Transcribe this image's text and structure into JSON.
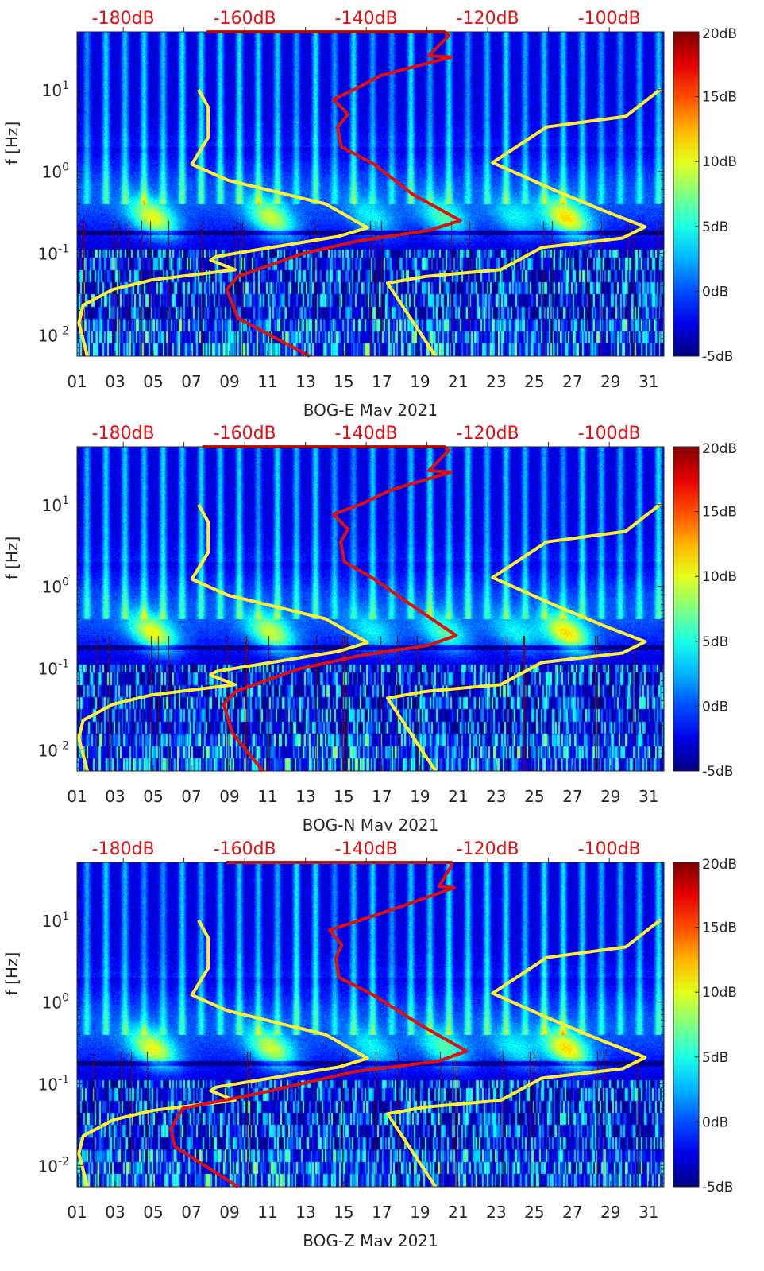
{
  "chart_data": [
    {
      "type": "heatmap",
      "xlabel": "BOG-E May 2021",
      "ylabel": "f [Hz]",
      "xlim": [
        1,
        31.8
      ],
      "ylim": [
        0.0055,
        51
      ],
      "yscale": "log",
      "x_ticks": {
        "values": [
          1,
          3,
          5,
          7,
          9,
          11,
          13,
          15,
          17,
          19,
          21,
          23,
          25,
          27,
          29,
          31
        ],
        "labels": [
          "01",
          "03",
          "05",
          "07",
          "09",
          "11",
          "13",
          "15",
          "17",
          "19",
          "21",
          "23",
          "25",
          "27",
          "29",
          "31"
        ]
      },
      "y_ticks": [
        {
          "value": 10,
          "base": "10",
          "exp": "1"
        },
        {
          "value": 1,
          "base": "10",
          "exp": "0"
        },
        {
          "value": 0.1,
          "base": "10",
          "exp": "-1"
        },
        {
          "value": 0.01,
          "base": "10",
          "exp": "-2"
        }
      ],
      "top_axis": {
        "xlim": [
          -187.6,
          -91
        ],
        "ticks": [
          {
            "value": -180,
            "label": "-180dB"
          },
          {
            "value": -160,
            "label": "-160dB"
          },
          {
            "value": -140,
            "label": "-140dB"
          },
          {
            "value": -120,
            "label": "-120dB"
          },
          {
            "value": -100,
            "label": "-100dB"
          }
        ]
      },
      "colorbar": {
        "range": [
          -5,
          20
        ],
        "colormap": "jet",
        "ticks": [
          {
            "value": 20,
            "label": "20dB"
          },
          {
            "value": 15,
            "label": "15dB"
          },
          {
            "value": 10,
            "label": "10dB"
          },
          {
            "value": 5,
            "label": "5dB"
          },
          {
            "value": 0,
            "label": "0dB"
          },
          {
            "value": -5,
            "label": "-5dB"
          }
        ]
      },
      "seed": 1,
      "curves": [
        {
          "color": "#ffee33",
          "points_db_hz": [
            [
              -167.6,
              10
            ],
            [
              -166.0,
              6.1
            ],
            [
              -166.0,
              2.6
            ],
            [
              -168.7,
              1.22
            ],
            [
              -162.8,
              0.78
            ],
            [
              -146.7,
              0.4
            ],
            [
              -139.8,
              0.205
            ],
            [
              -144.6,
              0.16
            ],
            [
              -164.7,
              0.091
            ],
            [
              -165.6,
              0.082
            ],
            [
              -161.6,
              0.0625
            ],
            [
              -175.3,
              0.047
            ],
            [
              -181.7,
              0.036
            ],
            [
              -186.6,
              0.023
            ],
            [
              -187.3,
              0.014
            ],
            [
              -185.9,
              0.0055
            ]
          ]
        },
        {
          "color": "#ffee33",
          "points_db_hz": [
            [
              -91.5,
              10.2
            ],
            [
              -97.3,
              4.7
            ],
            [
              -110.3,
              3.5
            ],
            [
              -119.2,
              1.28
            ],
            [
              -108.8,
              0.58
            ],
            [
              -100.9,
              0.33
            ],
            [
              -94.1,
              0.21
            ],
            [
              -97.8,
              0.153
            ],
            [
              -111.1,
              0.117
            ],
            [
              -117.9,
              0.0625
            ],
            [
              -120.8,
              0.06
            ],
            [
              -130.1,
              0.052
            ],
            [
              -136.5,
              0.043
            ],
            [
              -128.6,
              0.0055
            ]
          ]
        },
        {
          "color": "#e01010",
          "points_db_hz": [
            [
              -166.3,
              51
            ],
            [
              -127.1,
              51
            ],
            [
              -126.4,
              46
            ],
            [
              -129.7,
              26
            ],
            [
              -126,
              25
            ],
            [
              -137.5,
              15
            ],
            [
              -142,
              10
            ],
            [
              -145.4,
              7.6
            ],
            [
              -143,
              5
            ],
            [
              -144.7,
              3.5
            ],
            [
              -144.1,
              2.0
            ],
            [
              -138.8,
              1.24
            ],
            [
              -132.3,
              0.52
            ],
            [
              -124.5,
              0.25
            ],
            [
              -129.7,
              0.19
            ],
            [
              -141.5,
              0.14
            ],
            [
              -150.6,
              0.098
            ],
            [
              -161.1,
              0.052
            ],
            [
              -163.0,
              0.036
            ],
            [
              -161.1,
              0.016
            ],
            [
              -149.3,
              0.0055
            ]
          ]
        }
      ]
    },
    {
      "type": "heatmap",
      "xlabel": "BOG-N May 2021",
      "ylabel": "f [Hz]",
      "xlim": [
        1,
        31.8
      ],
      "ylim": [
        0.0055,
        51
      ],
      "yscale": "log",
      "x_ticks": {
        "values": [
          1,
          3,
          5,
          7,
          9,
          11,
          13,
          15,
          17,
          19,
          21,
          23,
          25,
          27,
          29,
          31
        ],
        "labels": [
          "01",
          "03",
          "05",
          "07",
          "09",
          "11",
          "13",
          "15",
          "17",
          "19",
          "21",
          "23",
          "25",
          "27",
          "29",
          "31"
        ]
      },
      "y_ticks": [
        {
          "value": 10,
          "base": "10",
          "exp": "1"
        },
        {
          "value": 1,
          "base": "10",
          "exp": "0"
        },
        {
          "value": 0.1,
          "base": "10",
          "exp": "-1"
        },
        {
          "value": 0.01,
          "base": "10",
          "exp": "-2"
        }
      ],
      "top_axis": {
        "xlim": [
          -187.6,
          -91
        ],
        "ticks": [
          {
            "value": -180,
            "label": "-180dB"
          },
          {
            "value": -160,
            "label": "-160dB"
          },
          {
            "value": -140,
            "label": "-140dB"
          },
          {
            "value": -120,
            "label": "-120dB"
          },
          {
            "value": -100,
            "label": "-100dB"
          }
        ]
      },
      "colorbar": {
        "range": [
          -5,
          20
        ],
        "colormap": "jet",
        "ticks": [
          {
            "value": 20,
            "label": "20dB"
          },
          {
            "value": 15,
            "label": "15dB"
          },
          {
            "value": 10,
            "label": "10dB"
          },
          {
            "value": 5,
            "label": "5dB"
          },
          {
            "value": 0,
            "label": "0dB"
          },
          {
            "value": -5,
            "label": "-5dB"
          }
        ]
      },
      "seed": 2,
      "curves": [
        {
          "color": "#ffee33",
          "points_db_hz": [
            [
              -167.6,
              10
            ],
            [
              -166.0,
              6.1
            ],
            [
              -166.0,
              2.6
            ],
            [
              -168.7,
              1.22
            ],
            [
              -162.8,
              0.78
            ],
            [
              -146.7,
              0.4
            ],
            [
              -139.8,
              0.205
            ],
            [
              -144.6,
              0.16
            ],
            [
              -164.7,
              0.091
            ],
            [
              -165.6,
              0.082
            ],
            [
              -161.6,
              0.0625
            ],
            [
              -175.3,
              0.047
            ],
            [
              -181.7,
              0.036
            ],
            [
              -186.6,
              0.023
            ],
            [
              -187.3,
              0.014
            ],
            [
              -185.9,
              0.0055
            ]
          ]
        },
        {
          "color": "#ffee33",
          "points_db_hz": [
            [
              -91.5,
              10.2
            ],
            [
              -97.3,
              4.7
            ],
            [
              -110.3,
              3.5
            ],
            [
              -119.2,
              1.28
            ],
            [
              -108.8,
              0.58
            ],
            [
              -100.9,
              0.33
            ],
            [
              -94.1,
              0.21
            ],
            [
              -97.8,
              0.153
            ],
            [
              -111.1,
              0.117
            ],
            [
              -117.9,
              0.0625
            ],
            [
              -120.8,
              0.06
            ],
            [
              -130.1,
              0.052
            ],
            [
              -136.5,
              0.043
            ],
            [
              -128.6,
              0.0055
            ]
          ]
        },
        {
          "color": "#e01010",
          "points_db_hz": [
            [
              -167,
              51
            ],
            [
              -127.1,
              51
            ],
            [
              -126.4,
              46
            ],
            [
              -129.7,
              26
            ],
            [
              -126,
              25
            ],
            [
              -136,
              15
            ],
            [
              -141,
              10
            ],
            [
              -145.4,
              7.6
            ],
            [
              -143,
              5
            ],
            [
              -144.2,
              3.5
            ],
            [
              -143.6,
              2.0
            ],
            [
              -138.8,
              1.24
            ],
            [
              -131.5,
              0.52
            ],
            [
              -125.2,
              0.25
            ],
            [
              -129.7,
              0.19
            ],
            [
              -141.5,
              0.14
            ],
            [
              -151,
              0.098
            ],
            [
              -161.5,
              0.052
            ],
            [
              -163.5,
              0.036
            ],
            [
              -162,
              0.016
            ],
            [
              -157,
              0.0055
            ]
          ]
        }
      ]
    },
    {
      "type": "heatmap",
      "xlabel": "BOG-Z May 2021",
      "ylabel": "f [Hz]",
      "xlim": [
        1,
        31.8
      ],
      "ylim": [
        0.0055,
        51
      ],
      "yscale": "log",
      "x_ticks": {
        "values": [
          1,
          3,
          5,
          7,
          9,
          11,
          13,
          15,
          17,
          19,
          21,
          23,
          25,
          27,
          29,
          31
        ],
        "labels": [
          "01",
          "03",
          "05",
          "07",
          "09",
          "11",
          "13",
          "15",
          "17",
          "19",
          "21",
          "23",
          "25",
          "27",
          "29",
          "31"
        ]
      },
      "y_ticks": [
        {
          "value": 10,
          "base": "10",
          "exp": "1"
        },
        {
          "value": 1,
          "base": "10",
          "exp": "0"
        },
        {
          "value": 0.1,
          "base": "10",
          "exp": "-1"
        },
        {
          "value": 0.01,
          "base": "10",
          "exp": "-2"
        }
      ],
      "top_axis": {
        "xlim": [
          -187.6,
          -91
        ],
        "ticks": [
          {
            "value": -180,
            "label": "-180dB"
          },
          {
            "value": -160,
            "label": "-160dB"
          },
          {
            "value": -140,
            "label": "-140dB"
          },
          {
            "value": -120,
            "label": "-120dB"
          },
          {
            "value": -100,
            "label": "-100dB"
          }
        ]
      },
      "colorbar": {
        "range": [
          -5,
          20
        ],
        "colormap": "jet",
        "ticks": [
          {
            "value": 20,
            "label": "20dB"
          },
          {
            "value": 15,
            "label": "15dB"
          },
          {
            "value": 10,
            "label": "10dB"
          },
          {
            "value": 5,
            "label": "5dB"
          },
          {
            "value": 0,
            "label": "0dB"
          },
          {
            "value": -5,
            "label": "-5dB"
          }
        ]
      },
      "seed": 3,
      "curves": [
        {
          "color": "#ffee33",
          "points_db_hz": [
            [
              -167.6,
              10
            ],
            [
              -166.0,
              6.1
            ],
            [
              -166.0,
              2.6
            ],
            [
              -168.7,
              1.22
            ],
            [
              -162.8,
              0.78
            ],
            [
              -146.7,
              0.4
            ],
            [
              -139.8,
              0.205
            ],
            [
              -144.6,
              0.16
            ],
            [
              -164.7,
              0.091
            ],
            [
              -165.6,
              0.082
            ],
            [
              -161.6,
              0.0625
            ],
            [
              -175.3,
              0.047
            ],
            [
              -181.7,
              0.036
            ],
            [
              -186.6,
              0.023
            ],
            [
              -187.3,
              0.014
            ],
            [
              -185.9,
              0.0055
            ]
          ]
        },
        {
          "color": "#ffee33",
          "points_db_hz": [
            [
              -91.5,
              10.2
            ],
            [
              -97.3,
              4.7
            ],
            [
              -110.3,
              3.5
            ],
            [
              -119.2,
              1.28
            ],
            [
              -108.8,
              0.58
            ],
            [
              -100.9,
              0.33
            ],
            [
              -94.1,
              0.21
            ],
            [
              -97.8,
              0.153
            ],
            [
              -111.1,
              0.117
            ],
            [
              -117.9,
              0.0625
            ],
            [
              -120.8,
              0.06
            ],
            [
              -130.1,
              0.052
            ],
            [
              -136.5,
              0.043
            ],
            [
              -128.6,
              0.0055
            ]
          ]
        },
        {
          "color": "#e01010",
          "points_db_hz": [
            [
              -163,
              51
            ],
            [
              -126,
              51
            ],
            [
              -126,
              46
            ],
            [
              -128,
              26
            ],
            [
              -125.5,
              25
            ],
            [
              -134,
              15
            ],
            [
              -141,
              10
            ],
            [
              -146,
              7.6
            ],
            [
              -144,
              5
            ],
            [
              -145,
              3.5
            ],
            [
              -144.5,
              2.0
            ],
            [
              -139,
              1.24
            ],
            [
              -131,
              0.52
            ],
            [
              -123.5,
              0.25
            ],
            [
              -128,
              0.19
            ],
            [
              -142,
              0.14
            ],
            [
              -157.1,
              0.078
            ],
            [
              -170.2,
              0.05
            ],
            [
              -172.2,
              0.0286
            ],
            [
              -171.5,
              0.017
            ],
            [
              -161.1,
              0.0055
            ]
          ]
        }
      ]
    }
  ]
}
